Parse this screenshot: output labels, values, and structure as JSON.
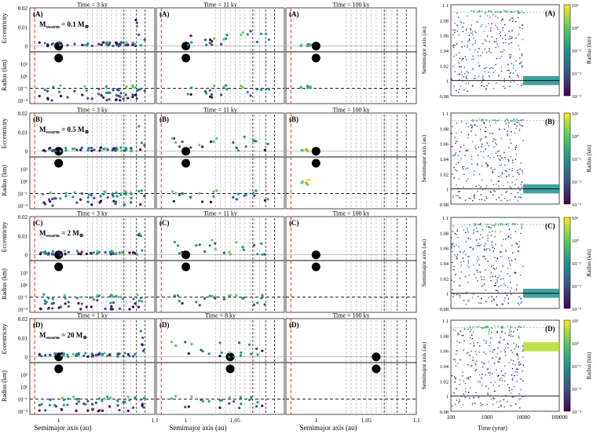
{
  "figure": {
    "left_xlabel": "Semimajor axis (au)",
    "right_xlabel": "Time (year)",
    "ecc_ylabel": "Eccentricity",
    "rad_ylabel": "Radius (km)",
    "right_ylabel": "Semimajor axis (au)",
    "colorbar_label": "Radius (km)"
  },
  "chart_data": {
    "type": "scatter",
    "x_range_au": [
      0.97,
      1.1
    ],
    "x_ticks": [
      "1",
      "1.05",
      "1.1"
    ],
    "ecc_range": [
      -0.003,
      0.02
    ],
    "ecc_ticks": [
      "0.02",
      "0.01",
      "0"
    ],
    "radius_ticks": [
      "10³",
      "10¹",
      "10⁻¹",
      "10⁻³"
    ],
    "radius_log_range": [
      -3,
      4
    ],
    "right_time_ticks": [
      "100",
      "1000",
      "10000",
      "100000"
    ],
    "right_time_log_range": [
      2,
      5
    ],
    "right_a_ticks": [
      "0.98",
      "1",
      "1.02",
      "1.04",
      "1.06",
      "1.08",
      "1.1"
    ],
    "right_a_range": [
      0.98,
      1.1
    ],
    "colorbar_ticks": [
      "10¹",
      "10⁰",
      "10⁻¹",
      "10⁻²",
      "10⁻³"
    ],
    "colorbar_log_range": [
      -3,
      1
    ],
    "colormap": [
      "#440154",
      "#3b528b",
      "#21918c",
      "#5ec962",
      "#fde725"
    ],
    "red_line_a": 0.975,
    "gray_lines_a": [
      1.03,
      1.035,
      1.04,
      1.045,
      1.05,
      1.055,
      1.06,
      1.065,
      1.07,
      1.075
    ],
    "black_lines_a": [
      1.068,
      1.081,
      1.09
    ],
    "dashed_radius": 0.1,
    "rows": [
      {
        "label": "(A)",
        "mswarm": "M",
        "mswarm_sub": "swarm",
        "mswarm_val": " = 0.1 M",
        "earth": "⊕",
        "times": [
          "Time = 3 ky",
          "Time = 11 ky",
          "Time = 100 ky"
        ],
        "planet_a": [
          1.0,
          1.0,
          1.0
        ],
        "right_end_a": 1.0
      },
      {
        "label": "(B)",
        "mswarm": "M",
        "mswarm_sub": "swarm",
        "mswarm_val": " = 0.5 M",
        "earth": "⊕",
        "times": [
          "Time = 3 ky",
          "Time = 11 ky",
          "Time = 100 ky"
        ],
        "planet_a": [
          1.0,
          1.0,
          1.0
        ],
        "right_end_a": 1.0
      },
      {
        "label": "(C)",
        "mswarm": "M",
        "mswarm_sub": "swarm",
        "mswarm_val": " = 2 M",
        "earth": "⊕",
        "times": [
          "Time = 3 ky",
          "Time = 11 ky",
          "Time = 100 ky"
        ],
        "planet_a": [
          1.0,
          1.0,
          1.0
        ],
        "right_end_a": 1.0
      },
      {
        "label": "(D)",
        "mswarm": "M",
        "mswarm_sub": "swarm",
        "mswarm_val": " = 20 M",
        "earth": "⊕",
        "times": [
          "Time = 1 ky",
          "Time = 8 ky",
          "Time = 100 ky"
        ],
        "planet_a": [
          1.0,
          1.045,
          1.06
        ],
        "right_end_a": 1.065
      }
    ]
  }
}
